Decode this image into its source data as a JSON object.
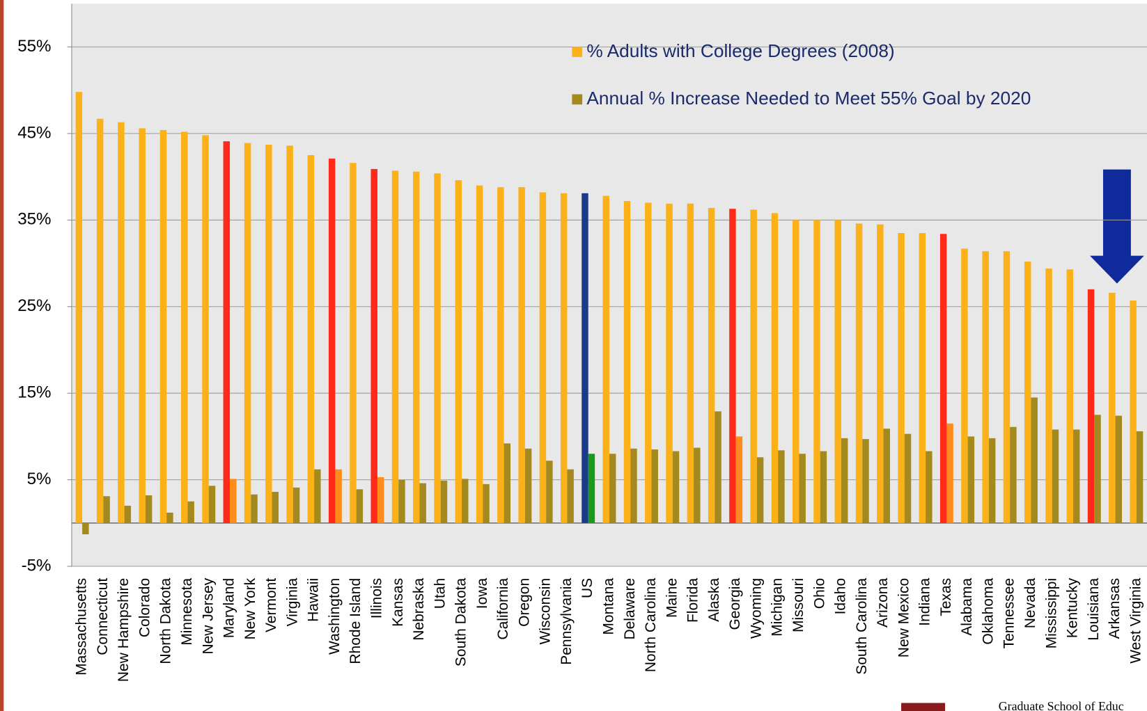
{
  "chart_data": {
    "type": "bar",
    "categories": [
      "Massachusetts",
      "Connecticut",
      "New Hampshire",
      "Colorado",
      "North Dakota",
      "Minnesota",
      "New Jersey",
      "Maryland",
      "New York",
      "Vermont",
      "Virginia",
      "Hawaii",
      "Washington",
      "Rhode Island",
      "Illinois",
      "Kansas",
      "Nebraska",
      "Utah",
      "South Dakota",
      "Iowa",
      "California",
      "Oregon",
      "Wisconsin",
      "Pennsylvania",
      "US",
      "Montana",
      "Delaware",
      "North Carolina",
      "Maine",
      "Florida",
      "Alaska",
      "Georgia",
      "Wyoming",
      "Michigan",
      "Missouri",
      "Ohio",
      "Idaho",
      "South Carolina",
      "Arizona",
      "New Mexico",
      "Indiana",
      "Texas",
      "Alabama",
      "Oklahoma",
      "Tennessee",
      "Nevada",
      "Mississippi",
      "Kentucky",
      "Louisiana",
      "Arkansas",
      "West Virginia"
    ],
    "series": [
      {
        "name": "% Adults with College Degrees (2008)",
        "color": "#fbb117",
        "values": [
          49.8,
          46.7,
          46.3,
          45.6,
          45.4,
          45.2,
          44.8,
          44.1,
          43.9,
          43.7,
          43.6,
          42.5,
          42.1,
          41.6,
          40.9,
          40.7,
          40.6,
          40.4,
          39.6,
          39.0,
          38.8,
          38.8,
          38.2,
          38.1,
          38.1,
          37.8,
          37.2,
          37.0,
          36.9,
          36.9,
          36.4,
          36.3,
          36.2,
          35.8,
          35.0,
          35.0,
          35.0,
          34.6,
          34.5,
          33.5,
          33.5,
          33.4,
          31.7,
          31.4,
          31.4,
          30.2,
          29.4,
          29.3,
          27.0,
          26.6,
          25.7
        ],
        "colors": [
          "#fbb117",
          "#fbb117",
          "#fbb117",
          "#fbb117",
          "#fbb117",
          "#fbb117",
          "#fbb117",
          "#ff2a1a",
          "#fbb117",
          "#fbb117",
          "#fbb117",
          "#fbb117",
          "#ff2a1a",
          "#fbb117",
          "#ff2a1a",
          "#fbb117",
          "#fbb117",
          "#fbb117",
          "#fbb117",
          "#fbb117",
          "#fbb117",
          "#fbb117",
          "#fbb117",
          "#fbb117",
          "#1a3a8a",
          "#fbb117",
          "#fbb117",
          "#fbb117",
          "#fbb117",
          "#fbb117",
          "#fbb117",
          "#ff2a1a",
          "#fbb117",
          "#fbb117",
          "#fbb117",
          "#fbb117",
          "#fbb117",
          "#fbb117",
          "#fbb117",
          "#fbb117",
          "#fbb117",
          "#ff2a1a",
          "#fbb117",
          "#fbb117",
          "#fbb117",
          "#fbb117",
          "#fbb117",
          "#fbb117",
          "#ff2a1a",
          "#fbb117",
          "#fbb117"
        ]
      },
      {
        "name": "Annual % Increase Needed to Meet 55% Goal by 2020",
        "color": "#a48a1e",
        "values": [
          -1.3,
          3.1,
          2.0,
          3.2,
          1.2,
          2.5,
          4.3,
          5.1,
          3.3,
          3.6,
          4.1,
          6.2,
          6.2,
          3.9,
          5.3,
          5.0,
          4.6,
          4.9,
          5.1,
          4.5,
          9.2,
          8.6,
          7.2,
          6.2,
          8.0,
          8.0,
          8.6,
          8.5,
          8.3,
          8.7,
          12.9,
          10.0,
          7.6,
          8.4,
          8.0,
          8.3,
          9.8,
          9.7,
          10.9,
          10.3,
          8.3,
          11.5,
          10.0,
          9.8,
          11.1,
          14.5,
          10.8,
          10.8,
          12.5,
          12.4,
          10.6
        ],
        "colors": [
          "#a48a1e",
          "#a48a1e",
          "#a48a1e",
          "#a48a1e",
          "#a48a1e",
          "#a48a1e",
          "#a48a1e",
          "#ff8c1a",
          "#a48a1e",
          "#a48a1e",
          "#a48a1e",
          "#a48a1e",
          "#ff8c1a",
          "#a48a1e",
          "#ff8c1a",
          "#a48a1e",
          "#a48a1e",
          "#a48a1e",
          "#a48a1e",
          "#a48a1e",
          "#a48a1e",
          "#a48a1e",
          "#a48a1e",
          "#a48a1e",
          "#1a9a1a",
          "#a48a1e",
          "#a48a1e",
          "#a48a1e",
          "#a48a1e",
          "#a48a1e",
          "#a48a1e",
          "#ff8c1a",
          "#a48a1e",
          "#a48a1e",
          "#a48a1e",
          "#a48a1e",
          "#a48a1e",
          "#a48a1e",
          "#a48a1e",
          "#a48a1e",
          "#a48a1e",
          "#ff8c1a",
          "#a48a1e",
          "#a48a1e",
          "#a48a1e",
          "#a48a1e",
          "#a48a1e",
          "#a48a1e",
          "#a48a1e",
          "#a48a1e",
          "#a48a1e"
        ]
      }
    ],
    "ylim": [
      -5,
      60
    ],
    "yticks": [
      {
        "value": -5,
        "label": "-5%"
      },
      {
        "value": 5,
        "label": "5%"
      },
      {
        "value": 15,
        "label": "15%"
      },
      {
        "value": 25,
        "label": "25%"
      },
      {
        "value": 35,
        "label": "35%"
      },
      {
        "value": 45,
        "label": "45%"
      },
      {
        "value": 55,
        "label": "55%"
      }
    ],
    "grid": true,
    "legend": "top-right",
    "logo_text": "Graduate School of Educ"
  }
}
